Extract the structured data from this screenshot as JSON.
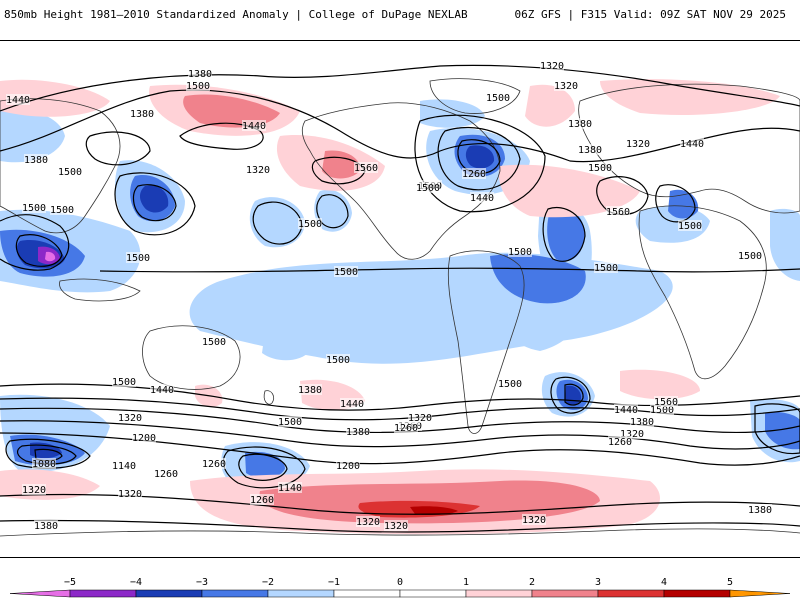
{
  "header": {
    "title": "850mb Height 1981–2010 Standardized Anomaly | College of DuPage NEXLAB",
    "run_info": "06Z GFS | F315 Valid: 09Z SAT NOV 29 2025"
  },
  "colors": {
    "neg5": "#e66ee6",
    "neg4": "#8c28c8",
    "neg3": "#1a3cb4",
    "neg2": "#4678e6",
    "neg1": "#b4d7ff",
    "zero": "#ffffff",
    "pos1": "#ffd2d7",
    "pos2": "#f0828c",
    "pos3": "#dc3232",
    "pos4": "#b40000",
    "pos5": "#ff9600",
    "contour": "#000000",
    "coast": "#333333"
  },
  "colorbar": {
    "ticks": [
      "−5",
      "−4",
      "−3",
      "−2",
      "−1",
      "0",
      "1",
      "2",
      "3",
      "4",
      "5"
    ]
  },
  "height_labels": [
    "1380",
    "1500",
    "1320",
    "1320",
    "1440",
    "1380",
    "1440",
    "1380",
    "1500",
    "1380",
    "1320",
    "1500",
    "1500",
    "1560",
    "1500",
    "1440",
    "1260",
    "1380",
    "1320",
    "1440",
    "1500",
    "1500",
    "1500",
    "1560",
    "1500",
    "1500",
    "1500",
    "1500",
    "1500",
    "1500",
    "1500",
    "1500",
    "1500",
    "1500",
    "1440",
    "1380",
    "1320",
    "1200",
    "1080",
    "1140",
    "1260",
    "1320",
    "1260",
    "1140",
    "1200",
    "1380",
    "1500",
    "1440",
    "1320",
    "1260",
    "1320",
    "1260",
    "1500",
    "1560",
    "1440",
    "1500",
    "1380",
    "1320",
    "1260",
    "1260",
    "1320",
    "1320",
    "1320",
    "1380",
    "1380"
  ]
}
